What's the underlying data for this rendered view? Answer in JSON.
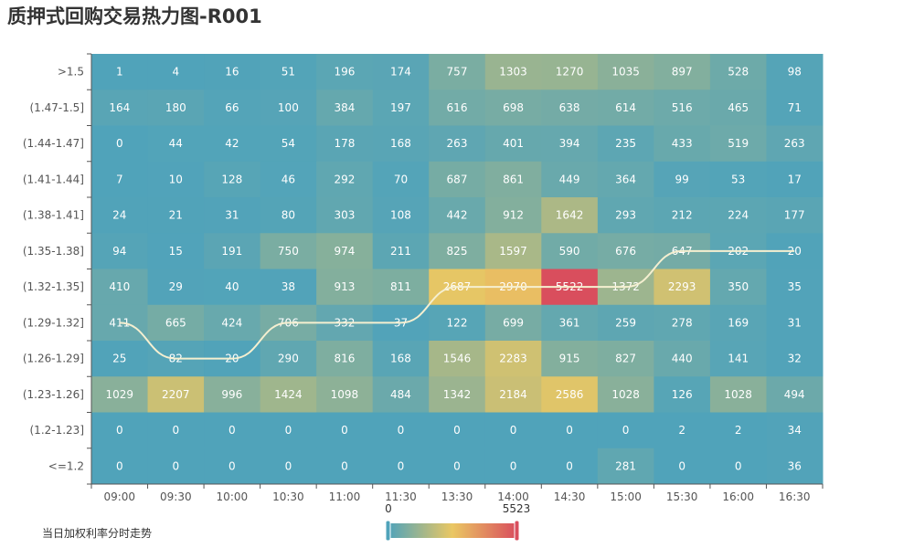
{
  "chart_data": {
    "type": "heatmap",
    "title": "质押式回购交易热力图-R001",
    "x_categories": [
      "09:00",
      "09:30",
      "10:00",
      "10:30",
      "11:00",
      "11:30",
      "13:30",
      "14:00",
      "14:30",
      "15:00",
      "15:30",
      "16:00",
      "16:30"
    ],
    "y_categories": [
      ">1.5",
      "(1.47-1.5]",
      "(1.44-1.47]",
      "(1.41-1.44]",
      "(1.38-1.41]",
      "(1.35-1.38]",
      "(1.32-1.35]",
      "(1.29-1.32]",
      "(1.26-1.29]",
      "(1.23-1.26]",
      "(1.2-1.23]",
      "<=1.2"
    ],
    "values": [
      [
        1,
        4,
        16,
        51,
        196,
        174,
        757,
        1303,
        1270,
        1035,
        897,
        528,
        98
      ],
      [
        164,
        180,
        66,
        100,
        384,
        197,
        616,
        698,
        638,
        614,
        516,
        465,
        71
      ],
      [
        0,
        44,
        42,
        54,
        178,
        168,
        263,
        401,
        394,
        235,
        433,
        519,
        263
      ],
      [
        7,
        10,
        128,
        46,
        292,
        70,
        687,
        861,
        449,
        364,
        99,
        53,
        17
      ],
      [
        24,
        21,
        31,
        80,
        303,
        108,
        442,
        912,
        1642,
        293,
        212,
        224,
        177
      ],
      [
        94,
        15,
        191,
        750,
        974,
        211,
        825,
        1597,
        590,
        676,
        647,
        202,
        20
      ],
      [
        410,
        29,
        40,
        38,
        913,
        811,
        2687,
        2970,
        5522,
        1372,
        2293,
        350,
        35
      ],
      [
        411,
        665,
        424,
        706,
        332,
        37,
        122,
        699,
        361,
        259,
        278,
        169,
        31
      ],
      [
        25,
        82,
        20,
        290,
        816,
        168,
        1546,
        2283,
        915,
        827,
        440,
        141,
        32
      ],
      [
        1029,
        2207,
        996,
        1424,
        1098,
        484,
        1342,
        2184,
        2586,
        1028,
        126,
        1028,
        494
      ],
      [
        0,
        0,
        0,
        0,
        0,
        0,
        0,
        0,
        0,
        0,
        2,
        2,
        34
      ],
      [
        0,
        0,
        0,
        0,
        0,
        0,
        0,
        0,
        0,
        281,
        0,
        0,
        36
      ]
    ],
    "visual_map": {
      "min": 0,
      "max": 5523,
      "min_label": "0",
      "max_label": "5523",
      "colors": [
        "#50a3ba",
        "#eac763",
        "#d94e5d"
      ]
    },
    "line_series": {
      "name": "当日加权利率分时走势",
      "points": [
        "(1.29-1.32]",
        "(1.26-1.29]",
        "(1.26-1.29]",
        "(1.29-1.32]",
        "(1.29-1.32]",
        "(1.29-1.32]",
        "(1.32-1.35]",
        "(1.32-1.35]",
        "(1.32-1.35]",
        "(1.32-1.35]",
        "(1.35-1.38]",
        "(1.35-1.38]",
        "(1.35-1.38]"
      ],
      "color": "#f5efd0"
    },
    "legend_label": "当日加权利率分时走势"
  }
}
